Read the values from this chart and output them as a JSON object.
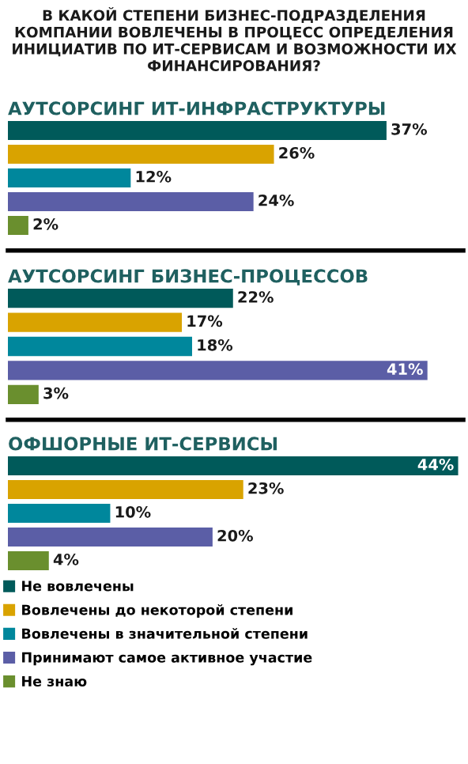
{
  "chart_data": [
    {
      "type": "bar",
      "orientation": "horizontal",
      "title": "В КАКОЙ СТЕПЕНИ БИЗНЕС-ПОДРАЗДЕЛЕНИЯ КОМПАНИИ ВОВЛЕЧЕНЫ В ПРОЦЕСС ОПРЕДЕЛЕНИЯ ИНИЦИАТИВ ПО ИТ-СЕРВИСАМ И ВОЗМОЖНОСТИ ИХ ФИНАНСИРОВАНИЯ?",
      "subtitle": "АУТСОРСИНГ ИТ-ИНФРАСТРУКТУРЫ",
      "categories": [
        null
      ],
      "xlim": [
        0,
        44.5
      ],
      "series": [
        {
          "color": "#005a5a",
          "values": [
            37
          ],
          "value_labels": [
            "37%"
          ]
        },
        {
          "color": "#d9a300",
          "values": [
            26
          ],
          "value_labels": [
            "26%"
          ]
        },
        {
          "color": "#00879c",
          "values": [
            12
          ],
          "value_labels": [
            "12%"
          ]
        },
        {
          "color": "#5b5ea6",
          "values": [
            24
          ],
          "value_labels": [
            "24%"
          ]
        },
        {
          "color": "#6a8f2e",
          "values": [
            2
          ],
          "value_labels": [
            "2%"
          ]
        }
      ]
    },
    {
      "type": "bar",
      "orientation": "horizontal",
      "subtitle": "АУТСОРСИНГ БИЗНЕС-ПРОЦЕССОВ",
      "categories": [
        null
      ],
      "xlim": [
        0,
        44.5
      ],
      "series": [
        {
          "color": "#005a5a",
          "values": [
            22
          ],
          "value_labels": [
            "22%"
          ]
        },
        {
          "color": "#d9a300",
          "values": [
            17
          ],
          "value_labels": [
            "17%"
          ]
        },
        {
          "color": "#00879c",
          "values": [
            18
          ],
          "value_labels": [
            "18%"
          ]
        },
        {
          "color": "#5b5ea6",
          "values": [
            41
          ],
          "value_labels": [
            "41%"
          ]
        },
        {
          "color": "#6a8f2e",
          "values": [
            3
          ],
          "value_labels": [
            "3%"
          ]
        }
      ]
    },
    {
      "type": "bar",
      "orientation": "horizontal",
      "subtitle": "ОФШОРНЫЕ ИТ-СЕРВИСЫ",
      "categories": [
        null
      ],
      "xlim": [
        0,
        44.5
      ],
      "legend": "bottom",
      "series": [
        {
          "name": "Не вовлечены",
          "color": "#005a5a",
          "values": [
            44
          ],
          "value_labels": [
            "44%"
          ]
        },
        {
          "name": "Вовлечены до некоторой степени",
          "color": "#d9a300",
          "values": [
            23
          ],
          "value_labels": [
            "23%"
          ]
        },
        {
          "name": "Вовлечены в значительной степени",
          "color": "#00879c",
          "values": [
            10
          ],
          "value_labels": [
            "10%"
          ]
        },
        {
          "name": "Принимают самое активное участие",
          "color": "#5b5ea6",
          "values": [
            20
          ],
          "value_labels": [
            "20%"
          ]
        },
        {
          "name": "Не знаю",
          "color": "#6a8f2e",
          "values": [
            4
          ],
          "value_labels": [
            "4%"
          ]
        }
      ]
    }
  ]
}
